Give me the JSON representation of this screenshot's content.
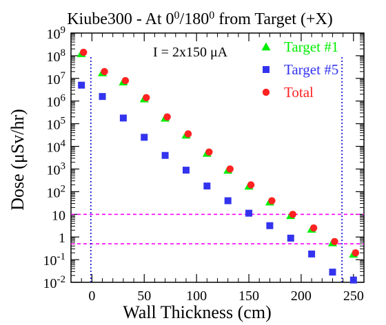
{
  "chart_data": {
    "type": "scatter",
    "title": {
      "main": "Kiube300 - At 0",
      "sup1": "0",
      "mid": "/180",
      "sup2": "0",
      "end": " from Target (+X)"
    },
    "xlabel": "Wall Thickness (cm)",
    "ylabel": "Dose (μSv/hr)",
    "annotation": "I = 2x150 μA",
    "xlim": [
      -20,
      260
    ],
    "ylim_log10": [
      -2,
      9
    ],
    "y_scale": "log",
    "grid": false,
    "legend_position": "top-right",
    "x_ticks": [
      {
        "value": 0,
        "label": "0"
      },
      {
        "value": 50,
        "label": "50"
      },
      {
        "value": 100,
        "label": "100"
      },
      {
        "value": 150,
        "label": "150"
      },
      {
        "value": 200,
        "label": "200"
      },
      {
        "value": 250,
        "label": "250"
      }
    ],
    "y_ticks": [
      {
        "exp": 9,
        "base": "10",
        "sup": "9"
      },
      {
        "exp": 8,
        "base": "10",
        "sup": "8"
      },
      {
        "exp": 7,
        "base": "10",
        "sup": "7"
      },
      {
        "exp": 6,
        "base": "10",
        "sup": "6"
      },
      {
        "exp": 5,
        "base": "10",
        "sup": "5"
      },
      {
        "exp": 4,
        "base": "10",
        "sup": "4"
      },
      {
        "exp": 3,
        "base": "10",
        "sup": "3"
      },
      {
        "exp": 2,
        "base": "10",
        "sup": "2"
      },
      {
        "exp": 1,
        "base": "10",
        "sup": ""
      },
      {
        "exp": 0,
        "base": "1",
        "sup": ""
      },
      {
        "exp": -1,
        "base": "10",
        "sup": "-1"
      },
      {
        "exp": -2,
        "base": "10",
        "sup": "-2"
      }
    ],
    "reference_lines": {
      "horizontal_log10": [
        1,
        -0.3
      ],
      "vertical_x": [
        -1,
        239
      ],
      "h_color": "#ff00ff",
      "v_color": "#0000cc"
    },
    "series": [
      {
        "name": "Target #1",
        "marker": "triangle",
        "color": "#00ee00",
        "points": [
          {
            "x": -10,
            "log10y": 8.1
          },
          {
            "x": 10,
            "log10y": 7.25
          },
          {
            "x": 30,
            "log10y": 6.85
          },
          {
            "x": 50,
            "log10y": 6.1
          },
          {
            "x": 70,
            "log10y": 5.25
          },
          {
            "x": 90,
            "log10y": 4.5
          },
          {
            "x": 110,
            "log10y": 3.7
          },
          {
            "x": 130,
            "log10y": 2.95
          },
          {
            "x": 150,
            "log10y": 2.25
          },
          {
            "x": 170,
            "log10y": 1.55
          },
          {
            "x": 190,
            "log10y": 0.95
          },
          {
            "x": 210,
            "log10y": 0.35
          },
          {
            "x": 230,
            "log10y": -0.25
          },
          {
            "x": 250,
            "log10y": -0.75
          }
        ]
      },
      {
        "name": "Target #5",
        "marker": "square",
        "color": "#3333ee",
        "points": [
          {
            "x": -10,
            "log10y": 6.7
          },
          {
            "x": 10,
            "log10y": 6.2
          },
          {
            "x": 30,
            "log10y": 5.25
          },
          {
            "x": 50,
            "log10y": 4.4
          },
          {
            "x": 70,
            "log10y": 3.6
          },
          {
            "x": 90,
            "log10y": 2.95
          },
          {
            "x": 110,
            "log10y": 2.25
          },
          {
            "x": 130,
            "log10y": 1.6
          },
          {
            "x": 150,
            "log10y": 1.05
          },
          {
            "x": 170,
            "log10y": 0.5
          },
          {
            "x": 190,
            "log10y": -0.05
          },
          {
            "x": 210,
            "log10y": -0.75
          },
          {
            "x": 230,
            "log10y": -1.55
          },
          {
            "x": 250,
            "log10y": -1.9
          }
        ]
      },
      {
        "name": "Total",
        "marker": "circle",
        "color": "#ff2222",
        "points": [
          {
            "x": -8,
            "log10y": 8.15
          },
          {
            "x": 12,
            "log10y": 7.3
          },
          {
            "x": 32,
            "log10y": 6.9
          },
          {
            "x": 52,
            "log10y": 6.15
          },
          {
            "x": 72,
            "log10y": 5.3
          },
          {
            "x": 92,
            "log10y": 4.55
          },
          {
            "x": 112,
            "log10y": 3.75
          },
          {
            "x": 132,
            "log10y": 3.0
          },
          {
            "x": 152,
            "log10y": 2.3
          },
          {
            "x": 172,
            "log10y": 1.6
          },
          {
            "x": 192,
            "log10y": 1.0
          },
          {
            "x": 212,
            "log10y": 0.4
          },
          {
            "x": 232,
            "log10y": -0.2
          },
          {
            "x": 252,
            "log10y": -0.7
          }
        ]
      }
    ]
  }
}
